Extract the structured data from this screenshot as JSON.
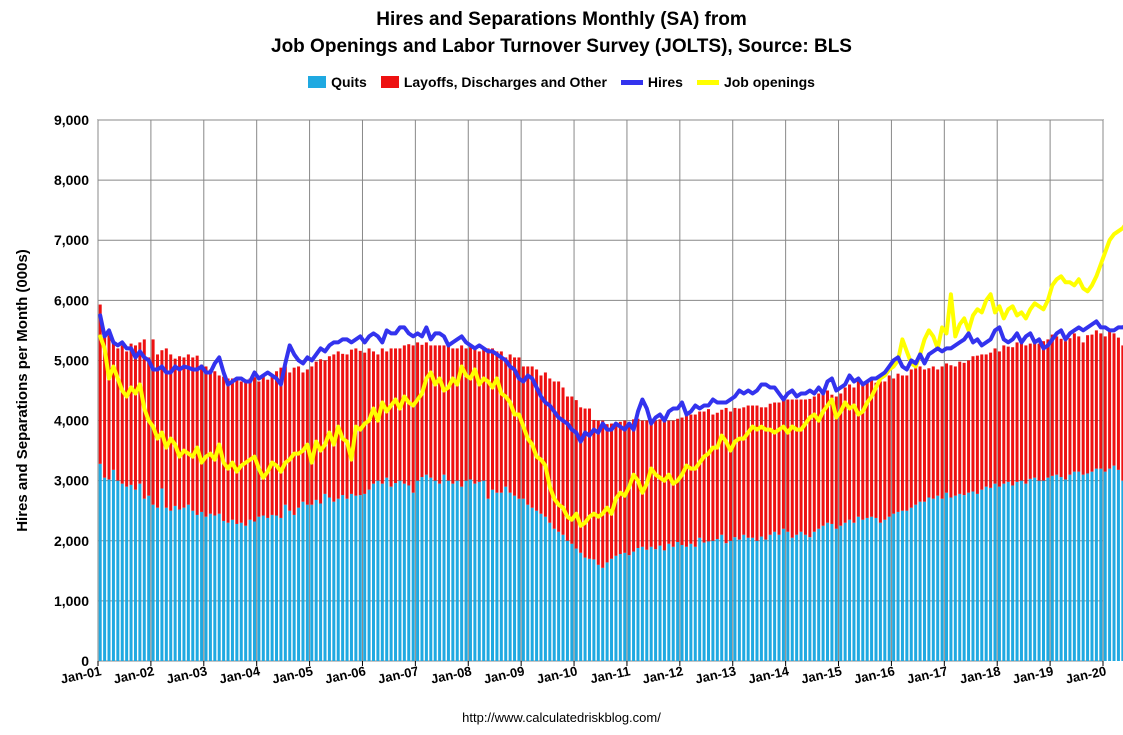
{
  "chart_data": {
    "type": "bar",
    "title_line1": "Hires and Separations Monthly (SA) from",
    "title_line2": "Job Openings and Labor Turnover Survey (JOLTS), Source: BLS",
    "ylabel": "Hires and Separations per Month (000s)",
    "ylim": [
      0,
      9000
    ],
    "y_ticks": [
      "0",
      "1,000",
      "2,000",
      "3,000",
      "4,000",
      "5,000",
      "6,000",
      "7,000",
      "8,000",
      "9,000"
    ],
    "x_ticks": [
      "Jan-01",
      "Jan-02",
      "Jan-03",
      "Jan-04",
      "Jan-05",
      "Jan-06",
      "Jan-07",
      "Jan-08",
      "Jan-09",
      "Jan-10",
      "Jan-11",
      "Jan-12",
      "Jan-13",
      "Jan-14",
      "Jan-15",
      "Jan-16",
      "Jan-17",
      "Jan-18",
      "Jan-19",
      "Jan-20"
    ],
    "x_start": "Jan-01",
    "x_end": "Jan-20",
    "grid": true,
    "legend_position": "top-center",
    "series": [
      {
        "name": "Quits",
        "kind": "bar",
        "color": "#1fa9e1",
        "values": [
          3280,
          3050,
          3020,
          3180,
          3000,
          2950,
          2900,
          2930,
          2850,
          2950,
          2700,
          2750,
          2600,
          2550,
          2870,
          2550,
          2500,
          2580,
          2520,
          2550,
          2600,
          2500,
          2430,
          2480,
          2400,
          2450,
          2420,
          2450,
          2330,
          2300,
          2350,
          2280,
          2300,
          2250,
          2350,
          2320,
          2400,
          2420,
          2380,
          2430,
          2420,
          2380,
          2600,
          2500,
          2430,
          2550,
          2650,
          2600,
          2600,
          2680,
          2620,
          2780,
          2720,
          2650,
          2700,
          2760,
          2700,
          2780,
          2750,
          2760,
          2780,
          2850,
          2950,
          3000,
          2950,
          3050,
          2900,
          2960,
          3000,
          2950,
          2920,
          2800,
          3000,
          3060,
          3100,
          3050,
          3000,
          2950,
          3100,
          3000,
          2950,
          3000,
          2900,
          3000,
          3020,
          2950,
          2980,
          3000,
          2700,
          2850,
          2800,
          2800,
          2900,
          2800,
          2750,
          2700,
          2700,
          2600,
          2550,
          2500,
          2450,
          2400,
          2300,
          2200,
          2150,
          2100,
          2000,
          1950,
          1870,
          1800,
          1720,
          1700,
          1690,
          1600,
          1550,
          1640,
          1700,
          1750,
          1780,
          1800,
          1760,
          1820,
          1880,
          1900,
          1850,
          1900,
          1860,
          1920,
          1840,
          1950,
          1900,
          1980,
          1930,
          1900,
          1950,
          1900,
          2050,
          1970,
          1990,
          2000,
          2030,
          2100,
          1960,
          2000,
          2060,
          2020,
          2100,
          2050,
          2050,
          2000,
          2070,
          2020,
          2100,
          2150,
          2100,
          2200,
          2150,
          2050,
          2100,
          2150,
          2100,
          2060,
          2150,
          2200,
          2250,
          2300,
          2280,
          2200,
          2250,
          2300,
          2350,
          2300,
          2400,
          2350,
          2380,
          2400,
          2380,
          2300,
          2350,
          2400,
          2450,
          2480,
          2500,
          2500,
          2550,
          2600,
          2650,
          2650,
          2720,
          2700,
          2750,
          2700,
          2800,
          2720,
          2750,
          2780,
          2760,
          2800,
          2820,
          2780,
          2850,
          2900,
          2880,
          2950,
          2900,
          2950,
          2980,
          2920,
          2980,
          3000,
          2950,
          3030,
          3050,
          3000,
          3000,
          3050,
          3080,
          3100,
          3060,
          3020,
          3100,
          3150,
          3150,
          3100,
          3120,
          3150,
          3200,
          3200,
          3150,
          3200,
          3250,
          3180,
          3000,
          3220,
          3280,
          3300,
          3320,
          3350,
          3400,
          3380,
          3420,
          3400,
          3480,
          3420,
          3380,
          3400,
          3450,
          3460,
          3420,
          3480,
          3500,
          3460,
          3480,
          3470,
          3520,
          3600
        ]
      },
      {
        "name": "Layoffs, Discharges and Other",
        "kind": "bar",
        "color": "#ee1111",
        "values": [
          2650,
          2350,
          2400,
          2150,
          2200,
          2300,
          2250,
          2350,
          2400,
          2350,
          2650,
          2300,
          2750,
          2550,
          2300,
          2650,
          2600,
          2450,
          2550,
          2500,
          2500,
          2550,
          2650,
          2450,
          2500,
          2400,
          2400,
          2300,
          2400,
          2400,
          2350,
          2420,
          2350,
          2400,
          2350,
          2400,
          2250,
          2350,
          2300,
          2300,
          2400,
          2500,
          2300,
          2300,
          2450,
          2350,
          2150,
          2250,
          2300,
          2300,
          2400,
          2220,
          2350,
          2450,
          2450,
          2350,
          2400,
          2400,
          2450,
          2400,
          2350,
          2350,
          2200,
          2100,
          2250,
          2100,
          2300,
          2240,
          2200,
          2300,
          2350,
          2450,
          2300,
          2200,
          2200,
          2200,
          2250,
          2300,
          2150,
          2250,
          2250,
          2200,
          2350,
          2200,
          2200,
          2250,
          2170,
          2200,
          2500,
          2350,
          2350,
          2350,
          2150,
          2300,
          2300,
          2350,
          2200,
          2300,
          2350,
          2350,
          2300,
          2400,
          2400,
          2450,
          2500,
          2450,
          2400,
          2450,
          2470,
          2420,
          2480,
          2500,
          2320,
          2400,
          2450,
          2300,
          2250,
          2200,
          2200,
          2200,
          2200,
          2200,
          2150,
          2100,
          2150,
          2100,
          2140,
          2100,
          2150,
          2050,
          2100,
          2050,
          2120,
          2200,
          2150,
          2200,
          2100,
          2180,
          2200,
          2100,
          2100,
          2080,
          2250,
          2150,
          2150,
          2180,
          2120,
          2200,
          2200,
          2250,
          2150,
          2200,
          2180,
          2150,
          2200,
          2150,
          2200,
          2300,
          2250,
          2200,
          2250,
          2300,
          2250,
          2250,
          2200,
          2200,
          2150,
          2200,
          2200,
          2250,
          2250,
          2250,
          2250,
          2280,
          2250,
          2300,
          2250,
          2350,
          2300,
          2350,
          2250,
          2300,
          2250,
          2250,
          2300,
          2270,
          2250,
          2200,
          2150,
          2200,
          2100,
          2200,
          2150,
          2200,
          2150,
          2200,
          2200,
          2200,
          2250,
          2300,
          2250,
          2200,
          2250,
          2250,
          2250,
          2300,
          2250,
          2300,
          2320,
          2300,
          2300,
          2250,
          2300,
          2280,
          2320,
          2300,
          2350,
          2300,
          2300,
          2300,
          2270,
          2300,
          2250,
          2200,
          2300,
          2280,
          2300,
          2250,
          2250,
          2300,
          2200,
          2200,
          2250,
          2300,
          2500,
          2220,
          2200,
          2200,
          2200,
          2200,
          2250,
          2280,
          2250,
          2350,
          2250,
          2250,
          2200,
          2200,
          2150,
          2100,
          2250,
          2150,
          2100,
          2050,
          2200,
          2150,
          2150
        ]
      },
      {
        "name": "Hires",
        "kind": "line",
        "color": "#3333ee",
        "values": [
          5750,
          5400,
          5500,
          5300,
          5250,
          5300,
          5200,
          5200,
          5050,
          5150,
          5050,
          5000,
          4850,
          4850,
          4900,
          4800,
          4800,
          4900,
          4850,
          4900,
          4880,
          4850,
          4850,
          4900,
          4800,
          4800,
          4950,
          5050,
          4800,
          4600,
          4650,
          4700,
          4700,
          4650,
          4650,
          4800,
          4700,
          4750,
          4800,
          4750,
          4700,
          4600,
          4950,
          5250,
          5100,
          5000,
          4950,
          5050,
          5000,
          5100,
          5200,
          5150,
          5250,
          5300,
          5300,
          5350,
          5350,
          5300,
          5350,
          5400,
          5300,
          5400,
          5450,
          5400,
          5300,
          5500,
          5450,
          5450,
          5550,
          5550,
          5450,
          5400,
          5450,
          5400,
          5550,
          5350,
          5450,
          5450,
          5400,
          5250,
          5300,
          5350,
          5400,
          5300,
          5250,
          5200,
          5250,
          5200,
          5150,
          5150,
          5100,
          5050,
          5000,
          4900,
          4850,
          4700,
          4650,
          4750,
          4700,
          4550,
          4400,
          4300,
          4250,
          4150,
          4050,
          4000,
          3950,
          3850,
          3800,
          3650,
          3800,
          3750,
          3850,
          3800,
          3950,
          3850,
          3850,
          3950,
          3900,
          3850,
          3950,
          3850,
          4150,
          4350,
          4200,
          3950,
          4050,
          4100,
          4000,
          4150,
          4200,
          4200,
          4300,
          4100,
          4150,
          4250,
          4200,
          4250,
          4250,
          4350,
          4300,
          4300,
          4300,
          4350,
          4400,
          4500,
          4450,
          4500,
          4450,
          4500,
          4600,
          4600,
          4550,
          4550,
          4450,
          4350,
          4450,
          4500,
          4400,
          4450,
          4450,
          4500,
          4450,
          4550,
          4450,
          4650,
          4700,
          4500,
          4550,
          4600,
          4750,
          4650,
          4700,
          4600,
          4650,
          4700,
          4700,
          4750,
          4800,
          4900,
          5000,
          5050,
          4900,
          4850,
          5000,
          4950,
          5100,
          4950,
          5100,
          5150,
          5200,
          5150,
          5200,
          5200,
          5250,
          5300,
          5350,
          5450,
          5300,
          5350,
          5250,
          5300,
          5350,
          5500,
          5550,
          5350,
          5300,
          5350,
          5450,
          5300,
          5400,
          5450,
          5300,
          5350,
          5200,
          5250,
          5350,
          5450,
          5500,
          5350,
          5450,
          5500,
          5550,
          5500,
          5550,
          5600,
          5650,
          5550,
          5550,
          5500,
          5500,
          5550,
          5550,
          5600,
          5600,
          5650,
          5700,
          5750,
          5850,
          5850,
          5850,
          5800,
          5850,
          5750,
          5800,
          5850,
          5750,
          6000,
          5900,
          5750,
          5700,
          5950
        ]
      },
      {
        "name": "Job openings",
        "kind": "line",
        "color": "#ffff00",
        "values": [
          5400,
          5200,
          4700,
          4900,
          4700,
          4500,
          4400,
          4550,
          4450,
          4600,
          4200,
          4000,
          3900,
          3700,
          3800,
          3550,
          3700,
          3600,
          3400,
          3500,
          3450,
          3400,
          3550,
          3300,
          3400,
          3450,
          3350,
          3600,
          3300,
          3200,
          3300,
          3150,
          3250,
          3300,
          3350,
          3400,
          3200,
          3050,
          3150,
          3300,
          3250,
          3150,
          3300,
          3350,
          3450,
          3450,
          3500,
          3600,
          3300,
          3650,
          3500,
          3600,
          3800,
          3600,
          3900,
          3700,
          3650,
          3350,
          3900,
          3850,
          3950,
          4000,
          4200,
          4000,
          4300,
          4150,
          4250,
          4350,
          4200,
          4400,
          4300,
          4250,
          4350,
          4450,
          4700,
          4800,
          4600,
          4700,
          4500,
          4550,
          4700,
          4600,
          4900,
          4750,
          4700,
          4850,
          4600,
          4700,
          4650,
          4550,
          4700,
          4450,
          4400,
          4300,
          4100,
          4100,
          3900,
          3700,
          3600,
          3400,
          3350,
          3250,
          2900,
          2700,
          2600,
          2550,
          2400,
          2350,
          2450,
          2250,
          2300,
          2400,
          2450,
          2400,
          2450,
          2550,
          2450,
          2700,
          2800,
          2750,
          2900,
          3100,
          3000,
          2800,
          2950,
          3200,
          3100,
          3050,
          3000,
          3100,
          2950,
          3000,
          3100,
          3250,
          3200,
          3200,
          3300,
          3400,
          3450,
          3550,
          3550,
          3750,
          3650,
          3500,
          3650,
          3700,
          3700,
          3800,
          3900,
          3850,
          3900,
          3850,
          3850,
          3800,
          3850,
          3900,
          3800,
          3900,
          3850,
          3850,
          3950,
          4050,
          4100,
          4000,
          4150,
          4250,
          4350,
          4050,
          4150,
          4300,
          4200,
          4250,
          4100,
          4150,
          4300,
          4400,
          4550,
          4700,
          4750,
          4850,
          4900,
          5000,
          5350,
          5150,
          4950,
          4900,
          5100,
          5350,
          5500,
          5400,
          5200,
          5550,
          5450,
          6100,
          5400,
          5600,
          5700,
          5500,
          5750,
          5850,
          5800,
          6000,
          6100,
          5800,
          5900,
          5700,
          5850,
          5900,
          5750,
          5800,
          5700,
          5850,
          5950,
          5900,
          5850,
          6000,
          6250,
          6350,
          6400,
          6300,
          6300,
          6250,
          6350,
          6200,
          6150,
          6250,
          6400,
          6600,
          6800,
          7000,
          7100,
          7150,
          7200,
          7300,
          7400,
          7350,
          7350,
          7400,
          7550,
          7600,
          7550,
          7600,
          7500,
          7100,
          7350,
          7350,
          7300,
          7250,
          7200
        ]
      }
    ],
    "source_text": "http://www.calculatedriskblog.com/"
  }
}
